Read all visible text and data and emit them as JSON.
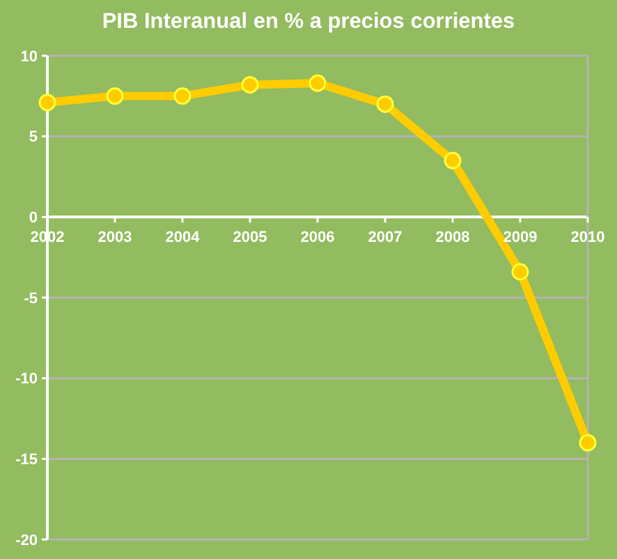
{
  "chart_data": {
    "type": "line",
    "title": "PIB Interanual en % a precios corrientes",
    "categories": [
      "2002",
      "2003",
      "2004",
      "2005",
      "2006",
      "2007",
      "2008",
      "2009",
      "2010"
    ],
    "series": [
      {
        "color": "#ffcc00",
        "values": [
          7.1,
          7.5,
          7.5,
          8.2,
          8.3,
          7.0,
          3.5,
          -3.4,
          -14.0
        ]
      }
    ],
    "ylim": [
      -20,
      10
    ],
    "yticks": [
      -20,
      -15,
      -10,
      -5,
      0,
      5,
      10
    ],
    "grid": "y",
    "marker": "circle"
  }
}
